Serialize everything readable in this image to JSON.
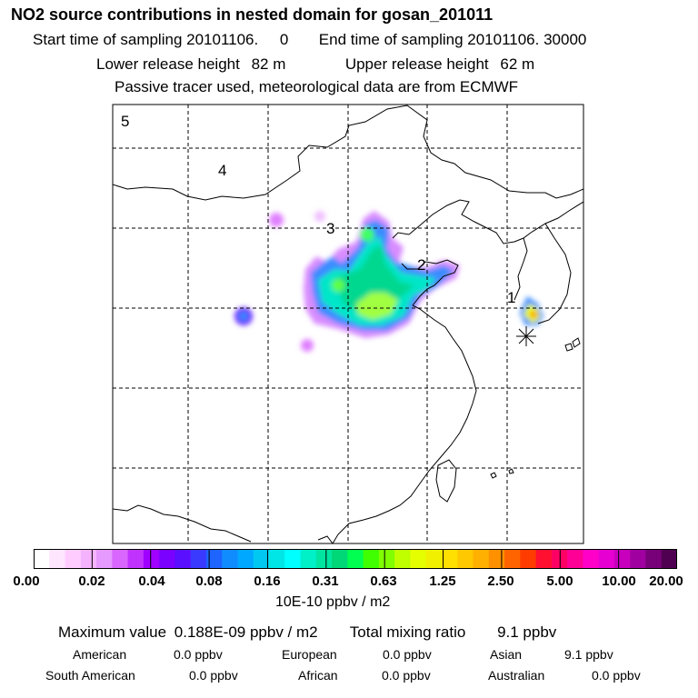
{
  "title": "NO2 source contributions in nested domain for gosan_201011",
  "header": {
    "start_label": "Start time of sampling",
    "start_value": "20101106.     0",
    "end_label": "End time of sampling",
    "end_value": "20101106. 30000",
    "lower_label": "Lower release height",
    "lower_value": "82 m",
    "upper_label": "Upper release height",
    "upper_value": "62 m",
    "note": "Passive tracer used, meteorological data are from ECMWF"
  },
  "map": {
    "region_labels": [
      "5",
      "4",
      "3",
      "2",
      "1"
    ],
    "receptor_marker": "asterisk-icon"
  },
  "colorbar": {
    "ticks": [
      "0.00",
      "0.02",
      "0.04",
      "0.08",
      "0.16",
      "0.31",
      "0.63",
      "1.25",
      "2.50",
      "5.00",
      "10.00",
      "20.00"
    ],
    "units": "10E-10 ppbv / m2",
    "colors": [
      "#ffffff",
      "#ffe6ff",
      "#ffccff",
      "#f5b3ff",
      "#e699ff",
      "#d966ff",
      "#c033ff",
      "#a000ff",
      "#7a00ff",
      "#5a10ff",
      "#3a3aff",
      "#1e64ff",
      "#108cff",
      "#00a8ff",
      "#00c8f0",
      "#00e6e6",
      "#00ffff",
      "#00f0c8",
      "#00e6a0",
      "#00d878",
      "#00ff50",
      "#40ff00",
      "#80ff00",
      "#c0ff00",
      "#e6ff00",
      "#f0f000",
      "#ffe000",
      "#ffc800",
      "#ffb000",
      "#ff9000",
      "#ff6400",
      "#ff3c00",
      "#ff1030",
      "#ff0064",
      "#ff0096",
      "#ff00c8",
      "#e600d2",
      "#c800be",
      "#a000a0",
      "#780078",
      "#500050"
    ]
  },
  "summary": {
    "max_label": "Maximum value",
    "max_value": "0.188E-09 ppbv / m2",
    "total_label": "Total mixing ratio",
    "total_value": "9.1 ppbv",
    "sources": [
      {
        "name": "American",
        "value": "0.0 ppbv"
      },
      {
        "name": "European",
        "value": "0.0 ppbv"
      },
      {
        "name": "Asian",
        "value": "9.1 ppbv"
      },
      {
        "name": "South American",
        "value": "0.0 ppbv"
      },
      {
        "name": "African",
        "value": "0.0 ppbv"
      },
      {
        "name": "Australian",
        "value": "0.0 ppbv"
      }
    ]
  }
}
